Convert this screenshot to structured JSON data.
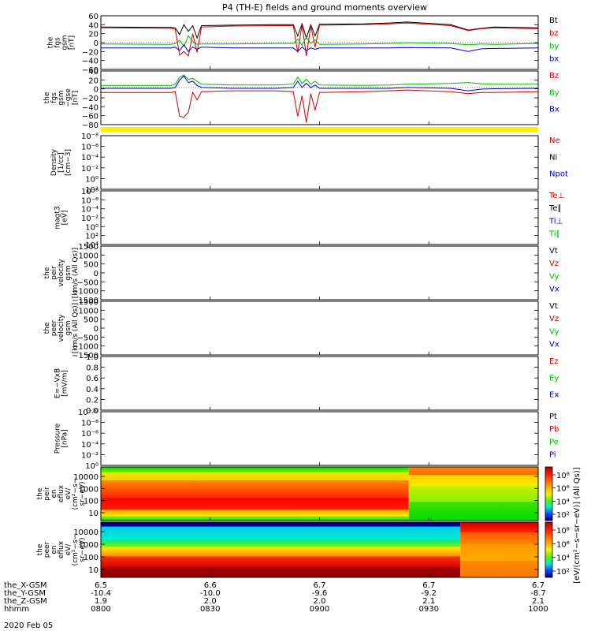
{
  "chart_data": {
    "title": "P4 (TH-E) fields and ground moments overview",
    "date_label": "2020 Feb 05",
    "time_ticks": [
      "0800",
      "0830",
      "0900",
      "0930",
      "1000"
    ],
    "orbit_rows": [
      {
        "label": "the_X-GSM",
        "values": [
          "6.5",
          "6.6",
          "6.7",
          "6.7",
          "6.7"
        ]
      },
      {
        "label": "the_Y-GSM",
        "values": [
          "-10.4",
          "-10.0",
          "-9.6",
          "-9.2",
          "-8.7"
        ]
      },
      {
        "label": "the_Z-GSM",
        "values": [
          "1.9",
          "2.0",
          "2.0",
          "2.1",
          "2.1"
        ]
      },
      {
        "label": "hhmm",
        "values": [
          "0800",
          "0830",
          "0900",
          "0930",
          "1000"
        ]
      }
    ],
    "panels": [
      {
        "id": "fgs-gsm",
        "type": "line",
        "ylabel": [
          "the",
          "fgs",
          "gsm",
          "[nT]"
        ],
        "ylim": [
          -60,
          60
        ],
        "yticks": [
          "60",
          "40",
          "20",
          "0",
          "−20",
          "−40",
          "−60"
        ],
        "legend": [
          {
            "name": "Bt",
            "color": "#000000"
          },
          {
            "name": "bz",
            "color": "#cc0000"
          },
          {
            "name": "by",
            "color": "#00bb00"
          },
          {
            "name": "bx",
            "color": "#0000cc"
          }
        ],
        "series": [
          {
            "name": "Bt",
            "color": "#000000",
            "x": [
              0,
              0.16,
              0.17,
              0.18,
              0.19,
              0.2,
              0.21,
              0.22,
              0.23,
              0.3,
              0.4,
              0.44,
              0.45,
              0.46,
              0.47,
              0.48,
              0.49,
              0.5,
              0.6,
              0.66,
              0.7,
              0.8,
              0.84,
              0.87,
              0.9,
              1
            ],
            "y": [
              35,
              34,
              33,
              18,
              40,
              25,
              38,
              10,
              38,
              39,
              40,
              40,
              15,
              42,
              10,
              40,
              15,
              41,
              42,
              44,
              46,
              40,
              28,
              32,
              35,
              33
            ]
          },
          {
            "name": "bz",
            "color": "#cc0000",
            "x": [
              0,
              0.16,
              0.17,
              0.18,
              0.19,
              0.2,
              0.21,
              0.22,
              0.23,
              0.3,
              0.4,
              0.44,
              0.45,
              0.46,
              0.47,
              0.48,
              0.49,
              0.5,
              0.6,
              0.66,
              0.7,
              0.8,
              0.84,
              0.87,
              0.9,
              1
            ],
            "y": [
              33,
              32,
              30,
              -28,
              -20,
              -30,
              20,
              -22,
              35,
              37,
              38,
              38,
              -22,
              40,
              -30,
              38,
              -10,
              39,
              40,
              42,
              44,
              38,
              27,
              31,
              33,
              31
            ]
          },
          {
            "name": "by",
            "color": "#00bb00",
            "x": [
              0,
              0.16,
              0.17,
              0.18,
              0.19,
              0.2,
              0.21,
              0.22,
              0.23,
              0.3,
              0.4,
              0.44,
              0.45,
              0.46,
              0.47,
              0.48,
              0.49,
              0.5,
              0.6,
              0.66,
              0.7,
              0.8,
              0.84,
              0.87,
              0.9,
              1
            ],
            "y": [
              -3,
              -4,
              -2,
              5,
              -8,
              15,
              3,
              -4,
              -3,
              -3,
              -2,
              -2,
              8,
              -6,
              12,
              -2,
              6,
              -4,
              -3,
              -2,
              0,
              -2,
              -5,
              -3,
              -4,
              -2
            ]
          },
          {
            "name": "bx",
            "color": "#0000cc",
            "x": [
              0,
              0.16,
              0.17,
              0.18,
              0.19,
              0.2,
              0.21,
              0.22,
              0.23,
              0.3,
              0.4,
              0.44,
              0.45,
              0.46,
              0.47,
              0.48,
              0.49,
              0.5,
              0.6,
              0.66,
              0.7,
              0.8,
              0.84,
              0.87,
              0.9,
              1
            ],
            "y": [
              -12,
              -12,
              -10,
              -18,
              -5,
              -20,
              -10,
              -15,
              -10,
              -12,
              -12,
              -12,
              -20,
              -10,
              -18,
              -12,
              -15,
              -12,
              -12,
              -12,
              -11,
              -12,
              -20,
              -14,
              -13,
              -12
            ]
          }
        ]
      },
      {
        "id": "fgs-gse",
        "type": "line",
        "ylabel": [
          "the",
          "fgs",
          "gsm",
          "−gse",
          "[nT]"
        ],
        "ylim": [
          -90,
          40
        ],
        "yticks": [
          "40",
          "20",
          "0",
          "−20",
          "−40",
          "−60",
          "−80"
        ],
        "legend": [
          {
            "name": "Bz",
            "color": "#cc0000"
          },
          {
            "name": "By",
            "color": "#00bb00"
          },
          {
            "name": "Bx",
            "color": "#0000cc"
          }
        ],
        "series": [
          {
            "name": "Bz",
            "color": "#cc0000",
            "x": [
              0,
              0.16,
              0.17,
              0.18,
              0.19,
              0.2,
              0.21,
              0.22,
              0.23,
              0.3,
              0.4,
              0.44,
              0.45,
              0.46,
              0.47,
              0.48,
              0.49,
              0.5,
              0.6,
              0.66,
              0.7,
              0.8,
              0.84,
              0.87,
              0.9,
              1
            ],
            "y": [
              -12,
              -12,
              -10,
              -70,
              -72,
              -60,
              -12,
              -30,
              -10,
              -8,
              -8,
              -10,
              -70,
              -20,
              -85,
              -15,
              -55,
              -12,
              -10,
              -8,
              -6,
              -10,
              -15,
              -12,
              -12,
              -10
            ]
          },
          {
            "name": "By",
            "color": "#00bb00",
            "x": [
              0,
              0.16,
              0.17,
              0.18,
              0.19,
              0.2,
              0.21,
              0.22,
              0.23,
              0.3,
              0.4,
              0.44,
              0.45,
              0.46,
              0.47,
              0.48,
              0.49,
              0.5,
              0.6,
              0.66,
              0.7,
              0.8,
              0.84,
              0.87,
              0.9,
              1
            ],
            "y": [
              5,
              5,
              8,
              25,
              30,
              20,
              22,
              15,
              8,
              6,
              6,
              8,
              25,
              10,
              20,
              8,
              15,
              6,
              5,
              6,
              8,
              10,
              12,
              9,
              8,
              8
            ]
          },
          {
            "name": "Bx",
            "color": "#0000cc",
            "x": [
              0,
              0.16,
              0.17,
              0.18,
              0.19,
              0.2,
              0.21,
              0.22,
              0.23,
              0.3,
              0.4,
              0.44,
              0.45,
              0.46,
              0.47,
              0.48,
              0.49,
              0.5,
              0.6,
              0.66,
              0.7,
              0.8,
              0.84,
              0.87,
              0.9,
              1
            ],
            "y": [
              -2,
              -2,
              0,
              18,
              28,
              12,
              15,
              5,
              0,
              -2,
              -2,
              0,
              15,
              0,
              10,
              0,
              6,
              -2,
              -2,
              -2,
              0,
              -2,
              -8,
              -4,
              -3,
              -2
            ]
          }
        ]
      },
      {
        "id": "flag-bar",
        "type": "bar",
        "color": "#ffee00"
      },
      {
        "id": "density",
        "type": "empty",
        "ylabel": [
          "Density",
          "[1/cc]",
          "[cm−3]"
        ],
        "scale": "log",
        "yticks": [
          "10⁻⁸",
          "10⁻⁶",
          "10⁻⁴",
          "10⁻²",
          "10⁰",
          "10²"
        ],
        "legend": [
          {
            "name": "Ne",
            "color": "#cc0000"
          },
          {
            "name": "Ni",
            "color": "#000000"
          },
          {
            "name": "Npot",
            "color": "#0000cc"
          }
        ]
      },
      {
        "id": "temperature",
        "type": "empty",
        "ylabel": [
          "magt3",
          "[eV]"
        ],
        "scale": "log",
        "yticks": [
          "10⁻⁸",
          "10⁻⁶",
          "10⁻⁴",
          "10⁻²",
          "10⁰",
          "10²",
          "10⁴"
        ],
        "legend": [
          {
            "name": "Te⊥",
            "color": "#cc0000"
          },
          {
            "name": "Te∥",
            "color": "#000000"
          },
          {
            "name": "Ti⊥",
            "color": "#0000cc"
          },
          {
            "name": "Ti∥",
            "color": "#00bb00"
          }
        ]
      },
      {
        "id": "peir-velocity",
        "type": "empty",
        "ylabel": [
          "the",
          "peir",
          "velocity",
          "gsm",
          "[km/s (All Qs)]"
        ],
        "scale": "linear",
        "yticks": [
          "1500",
          "1000",
          "500",
          "0",
          "−500",
          "−1000",
          "−1500"
        ],
        "legend": [
          {
            "name": "Vt",
            "color": "#000000"
          },
          {
            "name": "Vz",
            "color": "#cc0000"
          },
          {
            "name": "Vy",
            "color": "#00bb00"
          },
          {
            "name": "Vx",
            "color": "#0000cc"
          }
        ]
      },
      {
        "id": "peer-velocity",
        "type": "empty",
        "ylabel": [
          "the",
          "peer",
          "velocity",
          "gsm",
          "[km/s (All Qs)]"
        ],
        "scale": "linear",
        "yticks": [
          "1500",
          "1000",
          "500",
          "0",
          "−500",
          "−1000",
          "−1500"
        ],
        "legend": [
          {
            "name": "Vt",
            "color": "#000000"
          },
          {
            "name": "Vz",
            "color": "#cc0000"
          },
          {
            "name": "Vy",
            "color": "#00bb00"
          },
          {
            "name": "Vx",
            "color": "#0000cc"
          }
        ]
      },
      {
        "id": "efield",
        "type": "empty",
        "ylabel": [
          "E=−VxB",
          "[mV/m]"
        ],
        "scale": "linear",
        "yticks": [
          "1.0",
          "0.8",
          "0.6",
          "0.4",
          "0.2",
          "0.0"
        ],
        "legend": [
          {
            "name": "Ez",
            "color": "#cc0000"
          },
          {
            "name": "Ey",
            "color": "#00bb00"
          },
          {
            "name": "Ex",
            "color": "#0000cc"
          }
        ]
      },
      {
        "id": "pressure",
        "type": "empty",
        "ylabel": [
          "Pressure",
          "[nPa]"
        ],
        "scale": "log",
        "yticks": [
          "10⁻¹⁰",
          "10⁻⁸",
          "10⁻⁶",
          "10⁻⁴",
          "10⁻²",
          "10⁰"
        ],
        "legend": [
          {
            "name": "Pt",
            "color": "#000000"
          },
          {
            "name": "Pb",
            "color": "#cc0000"
          },
          {
            "name": "Pe",
            "color": "#00bb00"
          },
          {
            "name": "Pi",
            "color": "#0000cc"
          }
        ]
      },
      {
        "id": "peir-eflux",
        "type": "heatmap",
        "ylabel": [
          "the",
          "peir",
          "en",
          "eflux",
          "eV/",
          "(cm²−s−",
          "sr−eV)"
        ],
        "scale": "log",
        "ylim": [
          10,
          20000
        ],
        "yticks": [
          "10000",
          "1000",
          "100",
          "10"
        ],
        "blocks": [
          {
            "x0": 0,
            "x1": 0.704,
            "bands": [
              [
                "#00dd00",
                "#88ee00"
              ],
              [
                "#ddee00",
                "#ffcc00"
              ],
              [
                "#ff8800",
                "#ff2200"
              ],
              [
                "#ff0000",
                "#ff2200"
              ],
              [
                "#ffaa00",
                "#ffee00"
              ],
              [
                "#88ee00",
                "#00dd00"
              ]
            ],
            "band_y": [
              1,
              0.9,
              0.75,
              0.42,
              0.2,
              0.08,
              0
            ]
          },
          {
            "x0": 0.704,
            "x1": 1,
            "bands": [
              [
                "#ff8800",
                "#ff6600"
              ],
              [
                "#ffcc00",
                "#ffee00"
              ],
              [
                "#ccee00",
                "#88ee00"
              ],
              [
                "#44dd00",
                "#00dd00"
              ]
            ],
            "band_y": [
              1,
              0.85,
              0.65,
              0.35,
              0
            ]
          }
        ],
        "colorbar": {
          "ticks": [
            "10⁸",
            "10⁶",
            "10⁴",
            "10²"
          ]
        }
      },
      {
        "id": "peer-eflux",
        "type": "heatmap",
        "ylabel": [
          "the",
          "peer",
          "en",
          "eflux",
          "eV/",
          "(cm²−s−",
          "sr−eV)"
        ],
        "scale": "log",
        "ylim": [
          5,
          20000
        ],
        "yticks": [
          "10000",
          "1000",
          "100",
          "10"
        ],
        "blocks": [
          {
            "x0": 0,
            "x1": 0.822,
            "bands": [
              [
                "#000066",
                "#0000aa"
              ],
              [
                "#00ccee",
                "#00eecc"
              ],
              [
                "#00ee88",
                "#88ee00"
              ],
              [
                "#ffee00",
                "#ff8800"
              ],
              [
                "#ff3300",
                "#cc0000"
              ],
              [
                "#aa0000",
                "#880000"
              ]
            ],
            "band_y": [
              1,
              0.92,
              0.68,
              0.55,
              0.38,
              0.18,
              0
            ]
          },
          {
            "x0": 0.822,
            "x1": 1,
            "bands": [
              [
                "#cc0000",
                "#ff2200"
              ],
              [
                "#ff5500",
                "#ff8800"
              ],
              [
                "#ff9900",
                "#ffaa00"
              ],
              [
                "#ff8800",
                "#ff7700"
              ]
            ],
            "band_y": [
              1,
              0.82,
              0.6,
              0.3,
              0
            ]
          }
        ],
        "colorbar": {
          "ticks": [
            "10⁸",
            "10⁶",
            "10⁴",
            "10²"
          ]
        }
      }
    ],
    "colorbar_label": "[eV/(cm²−s−sr−eV)] (All Qs)]"
  }
}
